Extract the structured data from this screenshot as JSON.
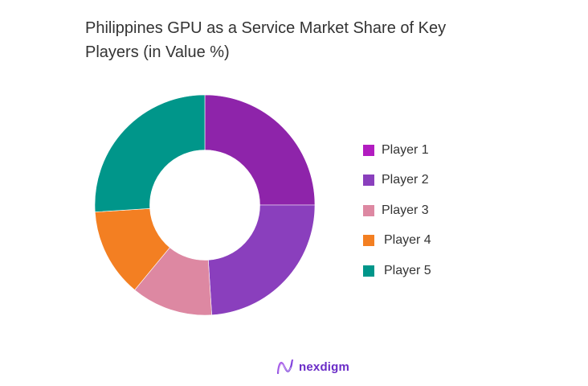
{
  "chart_data": {
    "type": "pie",
    "subtype": "donut",
    "title": "Philippines GPU as a Service Market Share of Key Players (in Value %)",
    "title_lines": [
      "Philippines GPU as a Service Market Share of Key",
      "Players (in Value %)"
    ],
    "categories": [
      "Player 1",
      "Player 2",
      "Player 3",
      "Player 4",
      "Player 5"
    ],
    "values": [
      25,
      24,
      12,
      13,
      26
    ],
    "unit": "%",
    "colors": [
      "#8E24AA",
      "#8A3FBD",
      "#DD88A2",
      "#F37F22",
      "#00968A"
    ],
    "legend_colors": [
      "#B21CC0",
      "#8A3FBD",
      "#DD88A2",
      "#F37F22",
      "#00968A"
    ],
    "start_angle_deg": 0,
    "direction": "clockwise",
    "inner_radius_ratio": 0.5,
    "legend_position": "right",
    "data_labels": false
  },
  "legend": {
    "items": [
      {
        "label": "Player 1"
      },
      {
        "label": "Player 2"
      },
      {
        "label": "Player 3"
      },
      {
        "label": "Player 4"
      },
      {
        "label": "Player 5"
      }
    ]
  },
  "branding": {
    "logo_text": "nexdigm",
    "logo_icon": "nexdigm-wave-icon"
  }
}
